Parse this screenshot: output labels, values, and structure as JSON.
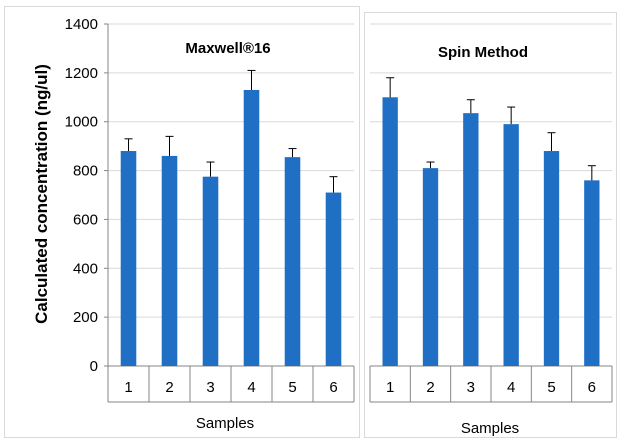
{
  "bar_color": "#1f6fc5",
  "chart_data": [
    {
      "type": "bar",
      "title": "Maxwell®16",
      "xlabel": "Samples",
      "ylabel": "Calculated concentration (ng/ul)",
      "ylim": [
        0,
        1400
      ],
      "yticks": [
        "0",
        "200",
        "400",
        "600",
        "800",
        "1000",
        "1200",
        "1400"
      ],
      "grid": true,
      "categories": [
        "1",
        "2",
        "3",
        "4",
        "5",
        "6"
      ],
      "values": [
        880,
        860,
        775,
        1130,
        855,
        710
      ],
      "errors": [
        50,
        80,
        60,
        80,
        35,
        65
      ]
    },
    {
      "type": "bar",
      "title": "Spin Method",
      "xlabel": "Samples",
      "ylabel": "",
      "ylim": [
        0,
        1400
      ],
      "grid": true,
      "categories": [
        "1",
        "2",
        "3",
        "4",
        "5",
        "6"
      ],
      "values": [
        1100,
        810,
        1035,
        990,
        880,
        760
      ],
      "errors": [
        80,
        25,
        55,
        70,
        75,
        60
      ]
    }
  ]
}
